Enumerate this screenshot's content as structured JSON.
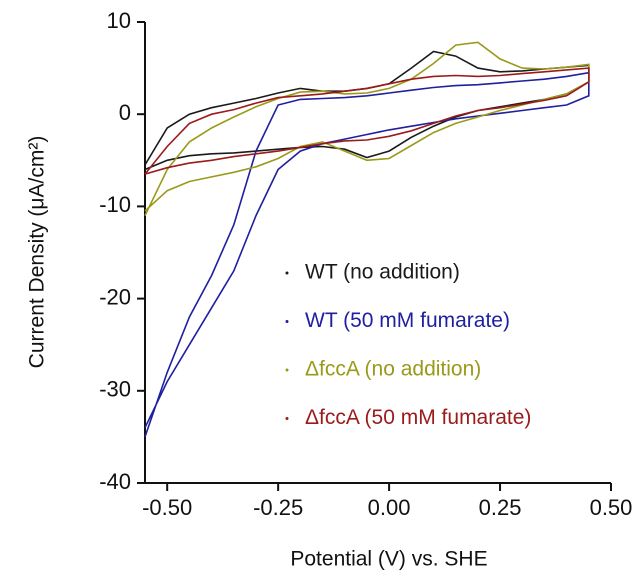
{
  "chart_data": {
    "type": "line",
    "xlabel": "Potential (V) vs. SHE",
    "ylabel": "Current Density (μA/cm²)",
    "x": [
      -0.55,
      -0.5,
      -0.45,
      -0.4,
      -0.35,
      -0.3,
      -0.25,
      -0.2,
      -0.15,
      -0.1,
      -0.05,
      0,
      0.05,
      0.1,
      0.15,
      0.2,
      0.25,
      0.3,
      0.35,
      0.4,
      0.45,
      0.45,
      0.4,
      0.35,
      0.3,
      0.25,
      0.2,
      0.15,
      0.1,
      0.05,
      0,
      -0.05,
      -0.1,
      -0.15,
      -0.2,
      -0.25,
      -0.3,
      -0.35,
      -0.4,
      -0.45,
      -0.5,
      -0.55
    ],
    "series": [
      {
        "name": "WT  (no addition)",
        "color": "#1a1a1a",
        "values": [
          -5.5,
          -1.5,
          0,
          0.7,
          1.2,
          1.7,
          2.3,
          2.8,
          2.5,
          2.5,
          2.8,
          3.3,
          5,
          6.8,
          6.3,
          5,
          4.6,
          4.7,
          4.9,
          5.1,
          5.3,
          3.5,
          2.2,
          1.6,
          1.2,
          0.8,
          0.4,
          -0.3,
          -1.3,
          -2.5,
          -4,
          -4.7,
          -3.8,
          -3.5,
          -3.6,
          -3.8,
          -4,
          -4.2,
          -4.3,
          -4.5,
          -5,
          -6
        ]
      },
      {
        "name": "WT (50 mM fumarate)",
        "color": "#1f1fa0",
        "values": [
          -35,
          -28,
          -22,
          -17.5,
          -12,
          -4,
          1,
          1.6,
          1.7,
          1.8,
          2,
          2.3,
          2.6,
          2.9,
          3.1,
          3.2,
          3.4,
          3.6,
          3.8,
          4.1,
          4.5,
          2,
          1,
          0.7,
          0.4,
          0.1,
          -0.2,
          -0.5,
          -0.9,
          -1.3,
          -1.7,
          -2.2,
          -2.7,
          -3.2,
          -4,
          -6,
          -11,
          -17,
          -21,
          -25,
          -29,
          -34
        ]
      },
      {
        "name": "ΔfccA (no addition)",
        "color": "#9a9a1a",
        "values": [
          -11,
          -6,
          -3,
          -1.5,
          -0.3,
          0.8,
          1.7,
          2.4,
          2.5,
          2.2,
          2.3,
          2.8,
          3.8,
          5.5,
          7.5,
          7.8,
          6,
          5,
          4.9,
          5.1,
          5.4,
          3.5,
          2.2,
          1.6,
          1,
          0.4,
          -0.3,
          -1,
          -2,
          -3.4,
          -4.8,
          -5,
          -4,
          -3,
          -3.5,
          -4.8,
          -5.7,
          -6.3,
          -6.8,
          -7.3,
          -8.3,
          -10.5
        ]
      },
      {
        "name": "ΔfccA (50 mM fumarate)",
        "color": "#9b1b1b",
        "values": [
          -6.5,
          -3.5,
          -1,
          0,
          0.5,
          1.2,
          1.8,
          2,
          2.2,
          2.5,
          2.8,
          3.3,
          3.8,
          4.1,
          4.2,
          4.1,
          4.2,
          4.4,
          4.6,
          4.8,
          5,
          3.5,
          2,
          1.5,
          1.1,
          0.7,
          0.4,
          -0.2,
          -1,
          -1.8,
          -2.4,
          -2.8,
          -2.9,
          -3.2,
          -3.6,
          -4,
          -4.3,
          -4.6,
          -5,
          -5.3,
          -5.8,
          -6.5
        ]
      }
    ],
    "xlim": [
      -0.55,
      0.5
    ],
    "xticks": [
      {
        "value": -0.5,
        "label": "-0.50"
      },
      -0.25,
      {
        "value": 0,
        "label": "0.00"
      },
      0.25,
      {
        "value": 0.5,
        "label": "0.50"
      }
    ],
    "ylim": [
      -40,
      10
    ],
    "yticks": [
      -40,
      -30,
      -20,
      -10,
      0,
      10
    ],
    "legend": "lower right"
  }
}
